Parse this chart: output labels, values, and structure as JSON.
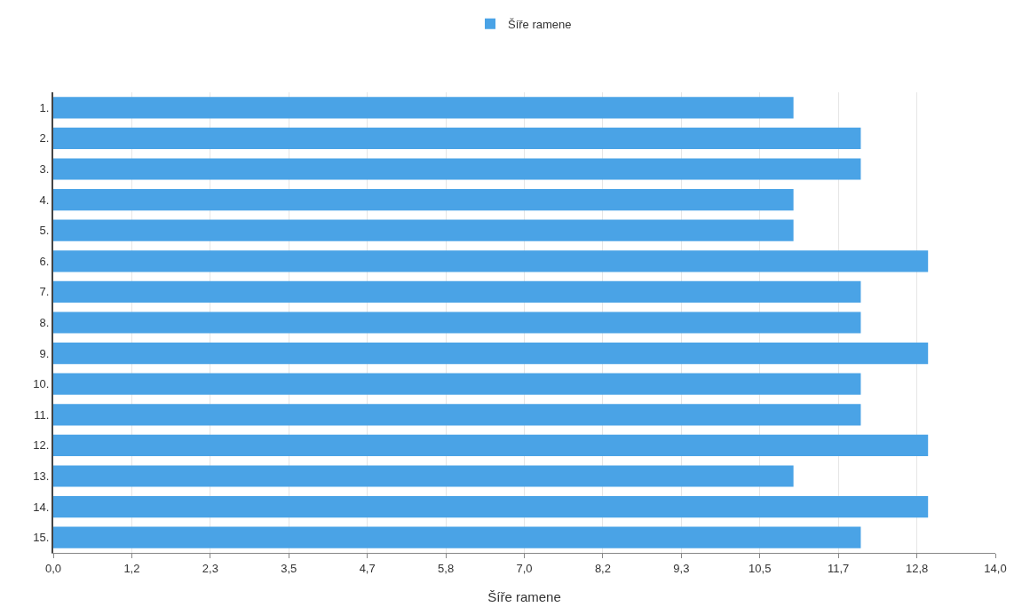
{
  "chart_data": {
    "type": "bar",
    "orientation": "horizontal",
    "xlabel": "Šíře ramene",
    "categories": [
      "1.",
      "2.",
      "3.",
      "4.",
      "5.",
      "6.",
      "7.",
      "8.",
      "9.",
      "10.",
      "11.",
      "12.",
      "13.",
      "14.",
      "15."
    ],
    "series": [
      {
        "name": "Šíře ramene",
        "color": "#4aa3e6",
        "values": [
          11,
          12,
          12,
          11,
          11,
          13,
          12,
          12,
          13,
          12,
          12,
          13,
          11,
          13,
          12
        ]
      }
    ],
    "xlim": [
      0,
      14
    ],
    "xticks": [
      {
        "value": 0,
        "label": "0,0"
      },
      {
        "value": 1.1667,
        "label": "1,2"
      },
      {
        "value": 2.3333,
        "label": "2,3"
      },
      {
        "value": 3.5,
        "label": "3,5"
      },
      {
        "value": 4.6667,
        "label": "4,7"
      },
      {
        "value": 5.8333,
        "label": "5,8"
      },
      {
        "value": 7,
        "label": "7,0"
      },
      {
        "value": 8.1667,
        "label": "8,2"
      },
      {
        "value": 9.3333,
        "label": "9,3"
      },
      {
        "value": 10.5,
        "label": "10,5"
      },
      {
        "value": 11.6667,
        "label": "11,7"
      },
      {
        "value": 12.8333,
        "label": "12,8"
      },
      {
        "value": 14,
        "label": "14,0"
      }
    ],
    "grid": "x",
    "legend": "top"
  }
}
